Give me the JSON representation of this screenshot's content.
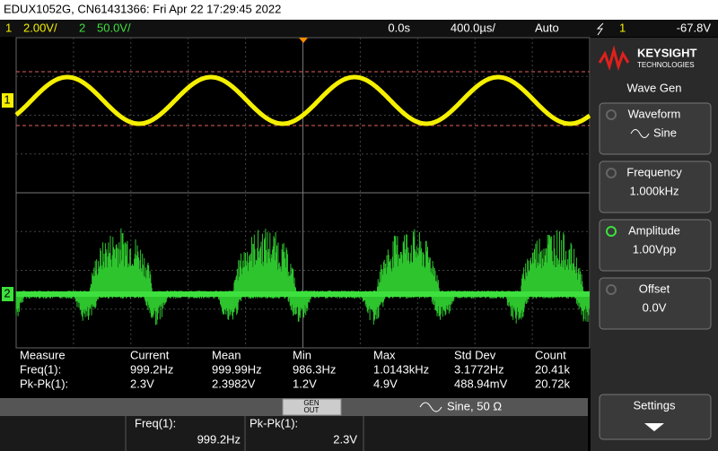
{
  "header": {
    "title": "EDUX1052G, CN61431366: Fri Apr 22 17:29:45 2022"
  },
  "status_bar": {
    "ch1_label": "1",
    "ch1_scale": "2.00V/",
    "ch2_label": "2",
    "ch2_scale": "50.0V/",
    "time_delay": "0.0s",
    "time_scale": "400.0µs/",
    "trigger_mode": "Auto",
    "trigger_source": "1",
    "trigger_level": "-67.8V"
  },
  "channel_markers": [
    "1",
    "2"
  ],
  "sidebar": {
    "brand": "KEYSIGHT",
    "brand_sub": "TECHNOLOGIES",
    "menu_title": "Wave Gen",
    "softkeys": [
      {
        "label": "Waveform",
        "value": "Sine"
      },
      {
        "label": "Frequency",
        "value": "1.000kHz"
      },
      {
        "label": "Amplitude",
        "value": "1.00Vpp"
      },
      {
        "label": "Offset",
        "value": "0.0V"
      }
    ],
    "settings": "Settings"
  },
  "measurements": {
    "headers": [
      "Measure",
      "Current",
      "Mean",
      "Min",
      "Max",
      "Std Dev",
      "Count"
    ],
    "rows": [
      [
        "Freq(1):",
        "999.2Hz",
        "999.99Hz",
        "986.3Hz",
        "1.0143kHz",
        "3.1772Hz",
        "20.41k"
      ],
      [
        "Pk-Pk(1):",
        "2.3V",
        "2.3982V",
        "1.2V",
        "4.9V",
        "488.94mV",
        "20.72k"
      ]
    ]
  },
  "wavegen_bar": {
    "button": [
      "GEN",
      "OUT"
    ],
    "status": "Sine, 50 Ω"
  },
  "quick_meas": [
    {
      "label": "Freq(1):",
      "value": "999.2Hz"
    },
    {
      "label": "Pk-Pk(1):",
      "value": "2.3V"
    }
  ]
}
